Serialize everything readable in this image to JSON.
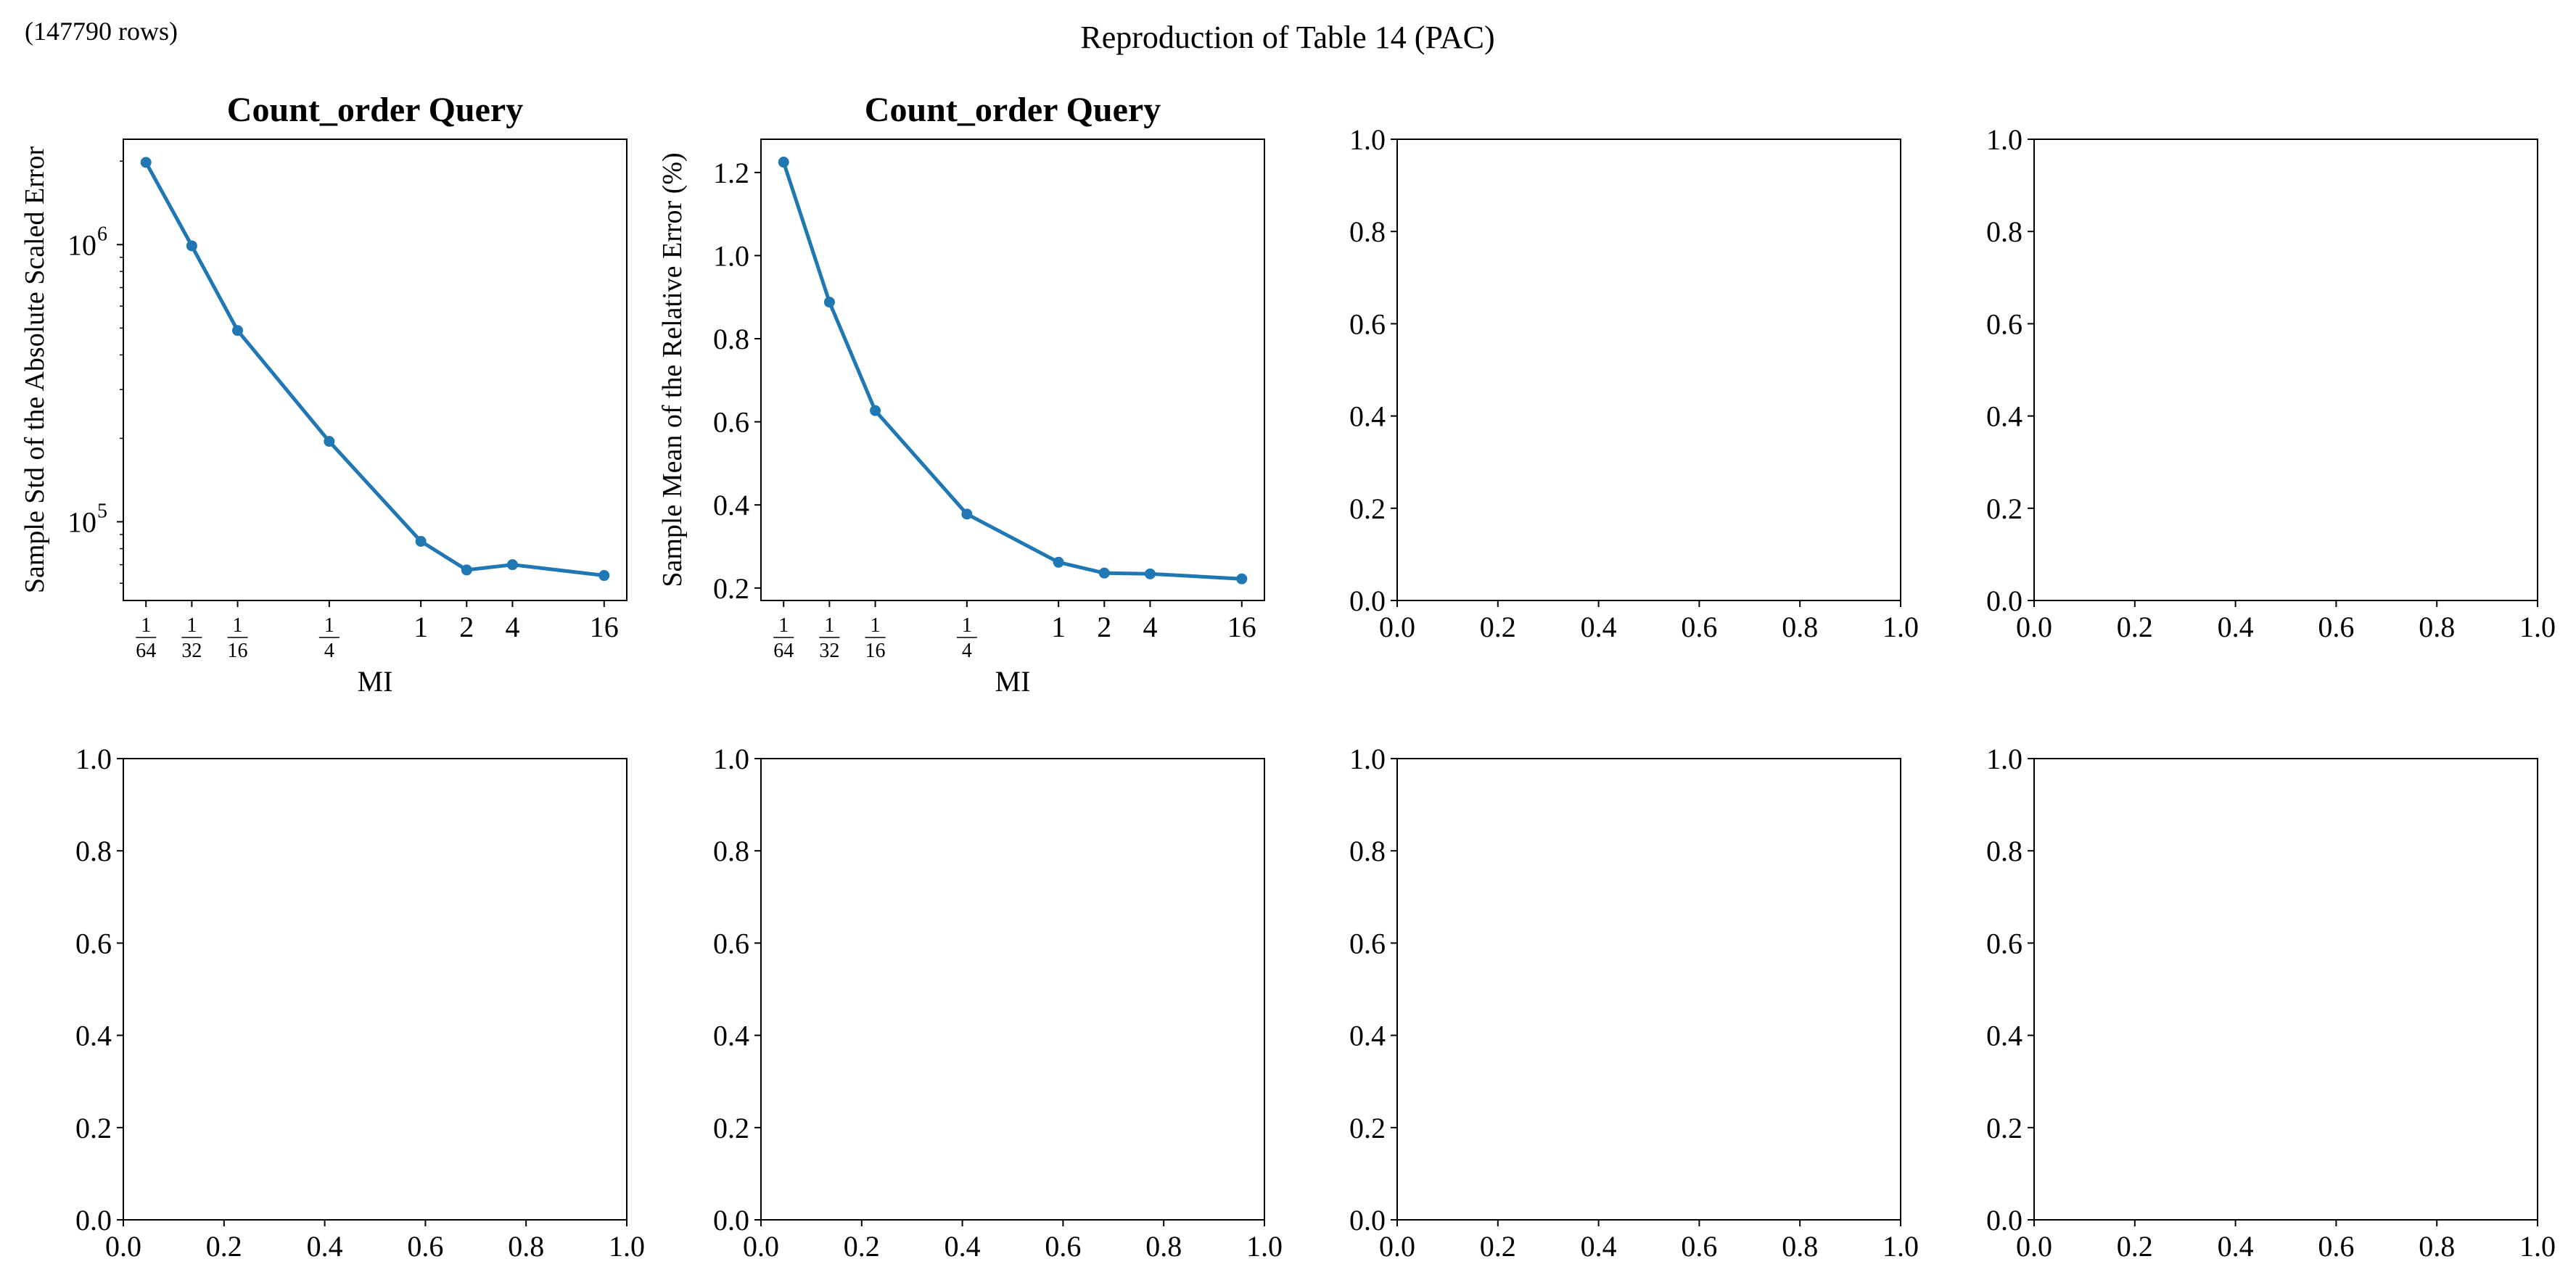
{
  "figure": {
    "suptitle": "Reproduction of Table 14 (PAC)",
    "row_count_note": "(147790 rows)",
    "line_color": "#1f77b4"
  },
  "chart_data": [
    {
      "type": "line",
      "title": "Count_order Query",
      "xlabel": "MI",
      "ylabel": "Sample Std of the Absolute Scaled Error",
      "xscale": "log2",
      "yscale": "log",
      "x": [
        0.015625,
        0.03125,
        0.0625,
        0.25,
        1,
        2,
        4,
        16
      ],
      "x_tick_labels": [
        {
          "value": 0.015625,
          "num": "1",
          "den": "64"
        },
        {
          "value": 0.03125,
          "num": "1",
          "den": "32"
        },
        {
          "value": 0.0625,
          "num": "1",
          "den": "16"
        },
        {
          "value": 0.25,
          "num": "1",
          "den": "4"
        },
        {
          "value": 1,
          "label": "1"
        },
        {
          "value": 2,
          "label": "2"
        },
        {
          "value": 4,
          "label": "4"
        },
        {
          "value": 16,
          "label": "16"
        }
      ],
      "y": [
        1980000,
        990000,
        490000,
        195000,
        85000,
        67000,
        70000,
        64000
      ],
      "ylim": [
        52000,
        2400000
      ],
      "y_major_ticks": [
        {
          "value": 100000,
          "base": "10",
          "exp": "5"
        },
        {
          "value": 1000000,
          "base": "10",
          "exp": "6"
        }
      ]
    },
    {
      "type": "line",
      "title": "Count_order Query",
      "xlabel": "MI",
      "ylabel": "Sample Mean of the Relative Error (%)",
      "xscale": "log2",
      "x": [
        0.015625,
        0.03125,
        0.0625,
        0.25,
        1,
        2,
        4,
        16
      ],
      "x_tick_labels": [
        {
          "value": 0.015625,
          "num": "1",
          "den": "64"
        },
        {
          "value": 0.03125,
          "num": "1",
          "den": "32"
        },
        {
          "value": 0.0625,
          "num": "1",
          "den": "16"
        },
        {
          "value": 0.25,
          "num": "1",
          "den": "4"
        },
        {
          "value": 1,
          "label": "1"
        },
        {
          "value": 2,
          "label": "2"
        },
        {
          "value": 4,
          "label": "4"
        },
        {
          "value": 16,
          "label": "16"
        }
      ],
      "y": [
        1.225,
        0.888,
        0.627,
        0.378,
        0.262,
        0.236,
        0.234,
        0.222
      ],
      "ylim": [
        0.17,
        1.28
      ],
      "y_ticks": [
        "0.2",
        "0.4",
        "0.6",
        "0.8",
        "1.0",
        "1.2"
      ]
    },
    {
      "type": "empty",
      "xlim": [
        0,
        1
      ],
      "ylim": [
        0,
        1
      ],
      "x_ticks": [
        "0.0",
        "0.2",
        "0.4",
        "0.6",
        "0.8",
        "1.0"
      ],
      "y_ticks": [
        "0.0",
        "0.2",
        "0.4",
        "0.6",
        "0.8",
        "1.0"
      ]
    },
    {
      "type": "empty",
      "xlim": [
        0,
        1
      ],
      "ylim": [
        0,
        1
      ],
      "x_ticks": [
        "0.0",
        "0.2",
        "0.4",
        "0.6",
        "0.8",
        "1.0"
      ],
      "y_ticks": [
        "0.0",
        "0.2",
        "0.4",
        "0.6",
        "0.8",
        "1.0"
      ]
    },
    {
      "type": "empty",
      "xlim": [
        0,
        1
      ],
      "ylim": [
        0,
        1
      ],
      "x_ticks": [
        "0.0",
        "0.2",
        "0.4",
        "0.6",
        "0.8",
        "1.0"
      ],
      "y_ticks": [
        "0.0",
        "0.2",
        "0.4",
        "0.6",
        "0.8",
        "1.0"
      ]
    },
    {
      "type": "empty",
      "xlim": [
        0,
        1
      ],
      "ylim": [
        0,
        1
      ],
      "x_ticks": [
        "0.0",
        "0.2",
        "0.4",
        "0.6",
        "0.8",
        "1.0"
      ],
      "y_ticks": [
        "0.0",
        "0.2",
        "0.4",
        "0.6",
        "0.8",
        "1.0"
      ]
    },
    {
      "type": "empty",
      "xlim": [
        0,
        1
      ],
      "ylim": [
        0,
        1
      ],
      "x_ticks": [
        "0.0",
        "0.2",
        "0.4",
        "0.6",
        "0.8",
        "1.0"
      ],
      "y_ticks": [
        "0.0",
        "0.2",
        "0.4",
        "0.6",
        "0.8",
        "1.0"
      ]
    },
    {
      "type": "empty",
      "xlim": [
        0,
        1
      ],
      "ylim": [
        0,
        1
      ],
      "x_ticks": [
        "0.0",
        "0.2",
        "0.4",
        "0.6",
        "0.8",
        "1.0"
      ],
      "y_ticks": [
        "0.0",
        "0.2",
        "0.4",
        "0.6",
        "0.8",
        "1.0"
      ]
    }
  ]
}
